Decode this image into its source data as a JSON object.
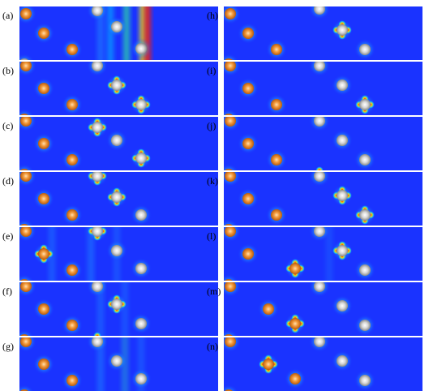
{
  "figure": {
    "panels": [
      {
        "id": "a",
        "label": "(a)"
      },
      {
        "id": "b",
        "label": "(b)"
      },
      {
        "id": "c",
        "label": "(c)"
      },
      {
        "id": "d",
        "label": "(d)"
      },
      {
        "id": "e",
        "label": "(e)"
      },
      {
        "id": "f",
        "label": "(f)"
      },
      {
        "id": "g",
        "label": "(g)"
      },
      {
        "id": "h",
        "label": "(h)"
      },
      {
        "id": "i",
        "label": "(i)"
      },
      {
        "id": "j",
        "label": "(j)"
      },
      {
        "id": "k",
        "label": "(k)"
      },
      {
        "id": "l",
        "label": "(l)"
      },
      {
        "id": "m",
        "label": "(m)"
      },
      {
        "id": "n",
        "label": "(n)"
      }
    ],
    "colors": {
      "field_background": "#1a33ff",
      "orange_atom": "#f39a3a",
      "gray_atom": "#d8d8d8",
      "hot_spot": "#ff2200",
      "warm_spot": "#ffee00",
      "cool_spot": "#00e5ff"
    }
  }
}
